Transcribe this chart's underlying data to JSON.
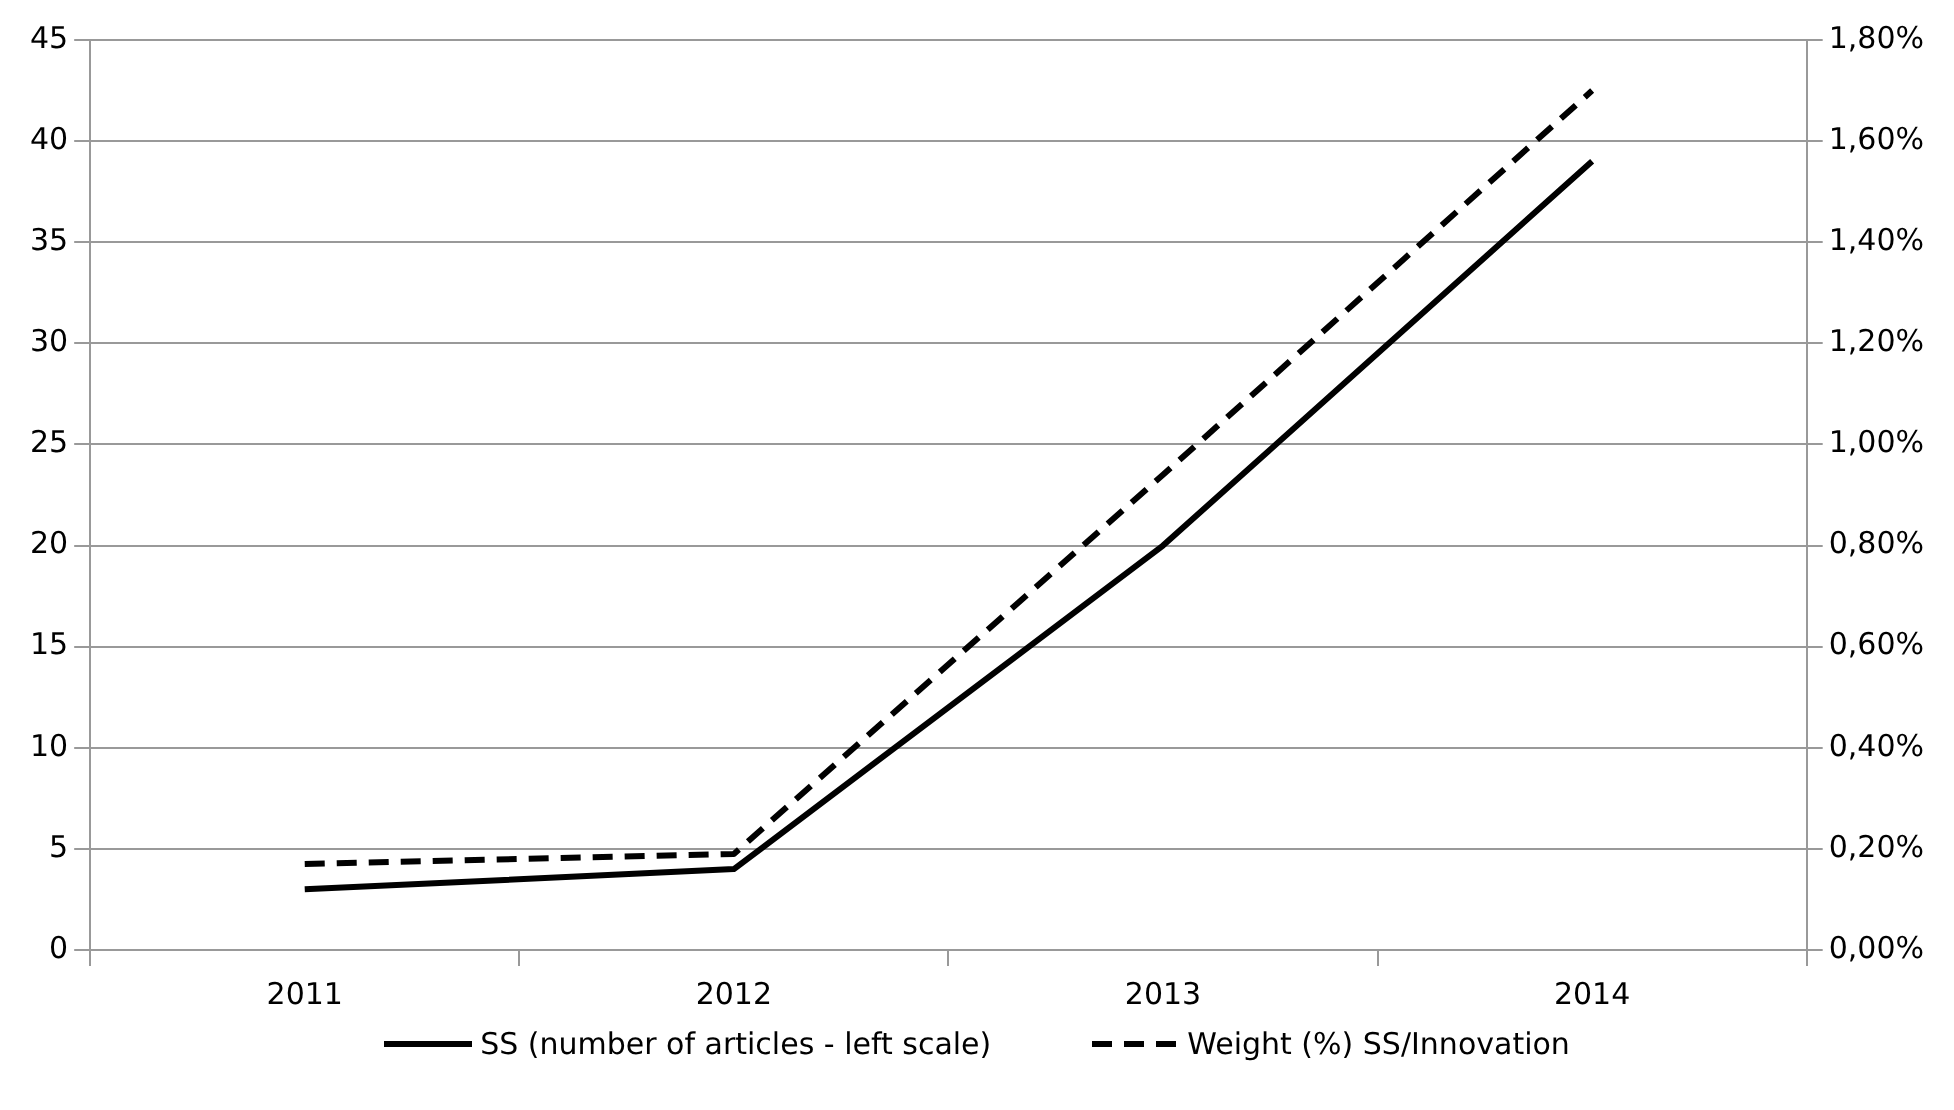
{
  "chart_data": {
    "type": "line",
    "categories": [
      "2011",
      "2012",
      "2013",
      "2014"
    ],
    "series": [
      {
        "name": "SS (number of articles - left scale)",
        "color": "#000000",
        "values": [
          3,
          4,
          20,
          39
        ],
        "line_style": "solid"
      },
      {
        "name": "Weight (%) SS/Innovation",
        "color": "#000000",
        "values": [
          0.17,
          0.19,
          0.94,
          1.7
        ],
        "axis": "y2",
        "line_style": "dashed"
      }
    ],
    "ylim": [
      0,
      45
    ],
    "yticks": [
      0,
      5,
      10,
      15,
      20,
      25,
      30,
      35,
      40,
      45
    ],
    "y2lim": [
      0,
      1.8
    ],
    "y2ticks": [
      {
        "value": 0,
        "label": "0,00%"
      },
      {
        "value": 0.2,
        "label": "0,20%"
      },
      {
        "value": 0.4,
        "label": "0,40%"
      },
      {
        "value": 0.6,
        "label": "0,60%"
      },
      {
        "value": 0.8,
        "label": "0,80%"
      },
      {
        "value": 1,
        "label": "1,00%"
      },
      {
        "value": 1.2,
        "label": "1,20%"
      },
      {
        "value": 1.4,
        "label": "1,40%"
      },
      {
        "value": 1.6,
        "label": "1,60%"
      },
      {
        "value": 1.8,
        "label": "1,80%"
      }
    ],
    "grid": "y",
    "legend": "bottom",
    "marker": "none"
  }
}
